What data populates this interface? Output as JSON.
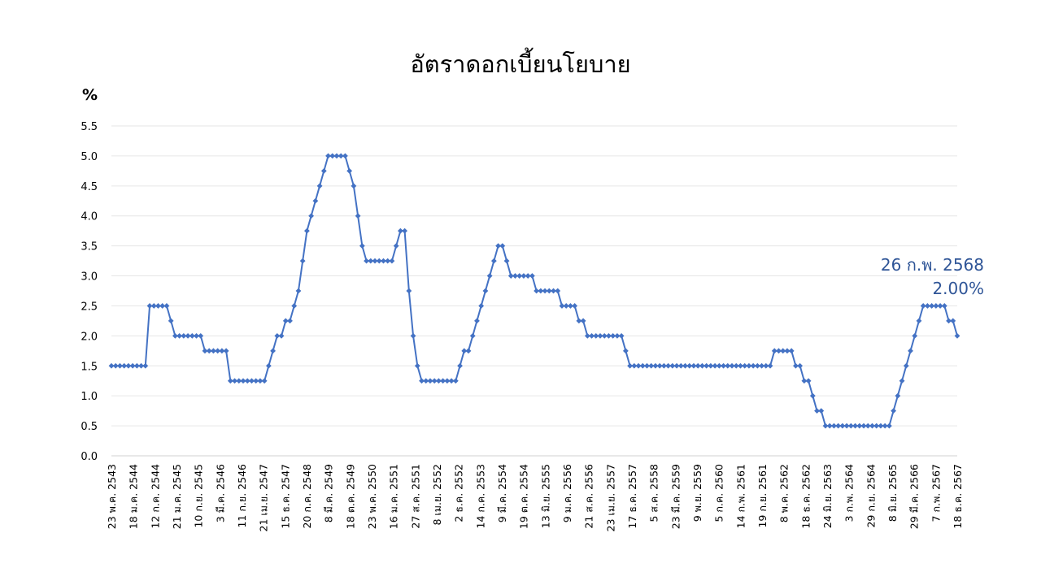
{
  "chart_data": {
    "type": "line",
    "title": "อัตราดอกเบี้ยนโยบาย",
    "ylabel": "%",
    "ylim": [
      0,
      5.5
    ],
    "yticks": [
      "0.0",
      "0.5",
      "1.0",
      "1.5",
      "2.0",
      "2.5",
      "3.0",
      "3.5",
      "4.0",
      "4.5",
      "5.0",
      "5.5"
    ],
    "grid": true,
    "legend": "none",
    "color": "#4472c4",
    "x_tick_labels": [
      "23 พ.ค. 2543",
      "18 ม.ค. 2544",
      "12 ก.ค. 2544",
      "21 ม.ค. 2545",
      "10 ก.ย. 2545",
      "3 มี.ค. 2546",
      "11 ก.ย. 2546",
      "21 เม.ย. 2547",
      "15 ธ.ค. 2547",
      "20 ก.ค. 2548",
      "8 มี.ค. 2549",
      "18 ต.ค. 2549",
      "23 พ.ค. 2550",
      "16 ม.ค. 2551",
      "27 ส.ค. 2551",
      "8 เม.ย. 2552",
      "2 ธ.ค. 2552",
      "14 ก.ค. 2553",
      "9 มี.ค. 2554",
      "19 ต.ค. 2554",
      "13 มิ.ย. 2555",
      "9 ม.ค. 2556",
      "21 ส.ค. 2556",
      "23 เม.ย. 2557",
      "17 ธ.ค. 2557",
      "5 ส.ค. 2558",
      "23 มี.ค. 2559",
      "9 พ.ย. 2559",
      "5 ก.ค. 2560",
      "14 ก.พ. 2561",
      "19 ก.ย. 2561",
      "8 พ.ค. 2562",
      "18 ธ.ค. 2562",
      "24 มิ.ย. 2563",
      "3 ก.พ. 2564",
      "29 ก.ย. 2564",
      "8 มิ.ย. 2565",
      "29 มี.ค. 2566",
      "7 ก.พ. 2567",
      "18 ธ.ค. 2567"
    ],
    "series": [
      {
        "values": [
          1.5,
          1.5,
          1.5,
          1.5,
          1.5,
          1.5,
          1.5,
          1.5,
          1.5,
          2.5,
          2.5,
          2.5,
          2.5,
          2.5,
          2.25,
          2.0,
          2.0,
          2.0,
          2.0,
          2.0,
          2.0,
          2.0,
          1.75,
          1.75,
          1.75,
          1.75,
          1.75,
          1.75,
          1.25,
          1.25,
          1.25,
          1.25,
          1.25,
          1.25,
          1.25,
          1.25,
          1.25,
          1.5,
          1.75,
          2.0,
          2.0,
          2.25,
          2.25,
          2.5,
          2.75,
          3.25,
          3.75,
          4.0,
          4.25,
          4.5,
          4.75,
          5.0,
          5.0,
          5.0,
          5.0,
          5.0,
          4.75,
          4.5,
          4.0,
          3.5,
          3.25,
          3.25,
          3.25,
          3.25,
          3.25,
          3.25,
          3.25,
          3.5,
          3.75,
          3.75,
          2.75,
          2.0,
          1.5,
          1.25,
          1.25,
          1.25,
          1.25,
          1.25,
          1.25,
          1.25,
          1.25,
          1.25,
          1.5,
          1.75,
          1.75,
          2.0,
          2.25,
          2.5,
          2.75,
          3.0,
          3.25,
          3.5,
          3.5,
          3.25,
          3.0,
          3.0,
          3.0,
          3.0,
          3.0,
          3.0,
          2.75,
          2.75,
          2.75,
          2.75,
          2.75,
          2.75,
          2.5,
          2.5,
          2.5,
          2.5,
          2.25,
          2.25,
          2.0,
          2.0,
          2.0,
          2.0,
          2.0,
          2.0,
          2.0,
          2.0,
          2.0,
          1.75,
          1.5,
          1.5,
          1.5,
          1.5,
          1.5,
          1.5,
          1.5,
          1.5,
          1.5,
          1.5,
          1.5,
          1.5,
          1.5,
          1.5,
          1.5,
          1.5,
          1.5,
          1.5,
          1.5,
          1.5,
          1.5,
          1.5,
          1.5,
          1.5,
          1.5,
          1.5,
          1.5,
          1.5,
          1.5,
          1.5,
          1.5,
          1.5,
          1.5,
          1.5,
          1.75,
          1.75,
          1.75,
          1.75,
          1.75,
          1.5,
          1.5,
          1.25,
          1.25,
          1.0,
          0.75,
          0.75,
          0.5,
          0.5,
          0.5,
          0.5,
          0.5,
          0.5,
          0.5,
          0.5,
          0.5,
          0.5,
          0.5,
          0.5,
          0.5,
          0.5,
          0.5,
          0.5,
          0.75,
          1.0,
          1.25,
          1.5,
          1.75,
          2.0,
          2.25,
          2.5,
          2.5,
          2.5,
          2.5,
          2.5,
          2.5,
          2.25,
          2.25,
          2.0
        ]
      }
    ],
    "annotations": {
      "date": "26 ก.พ. 2568",
      "value": "2.00%"
    }
  }
}
